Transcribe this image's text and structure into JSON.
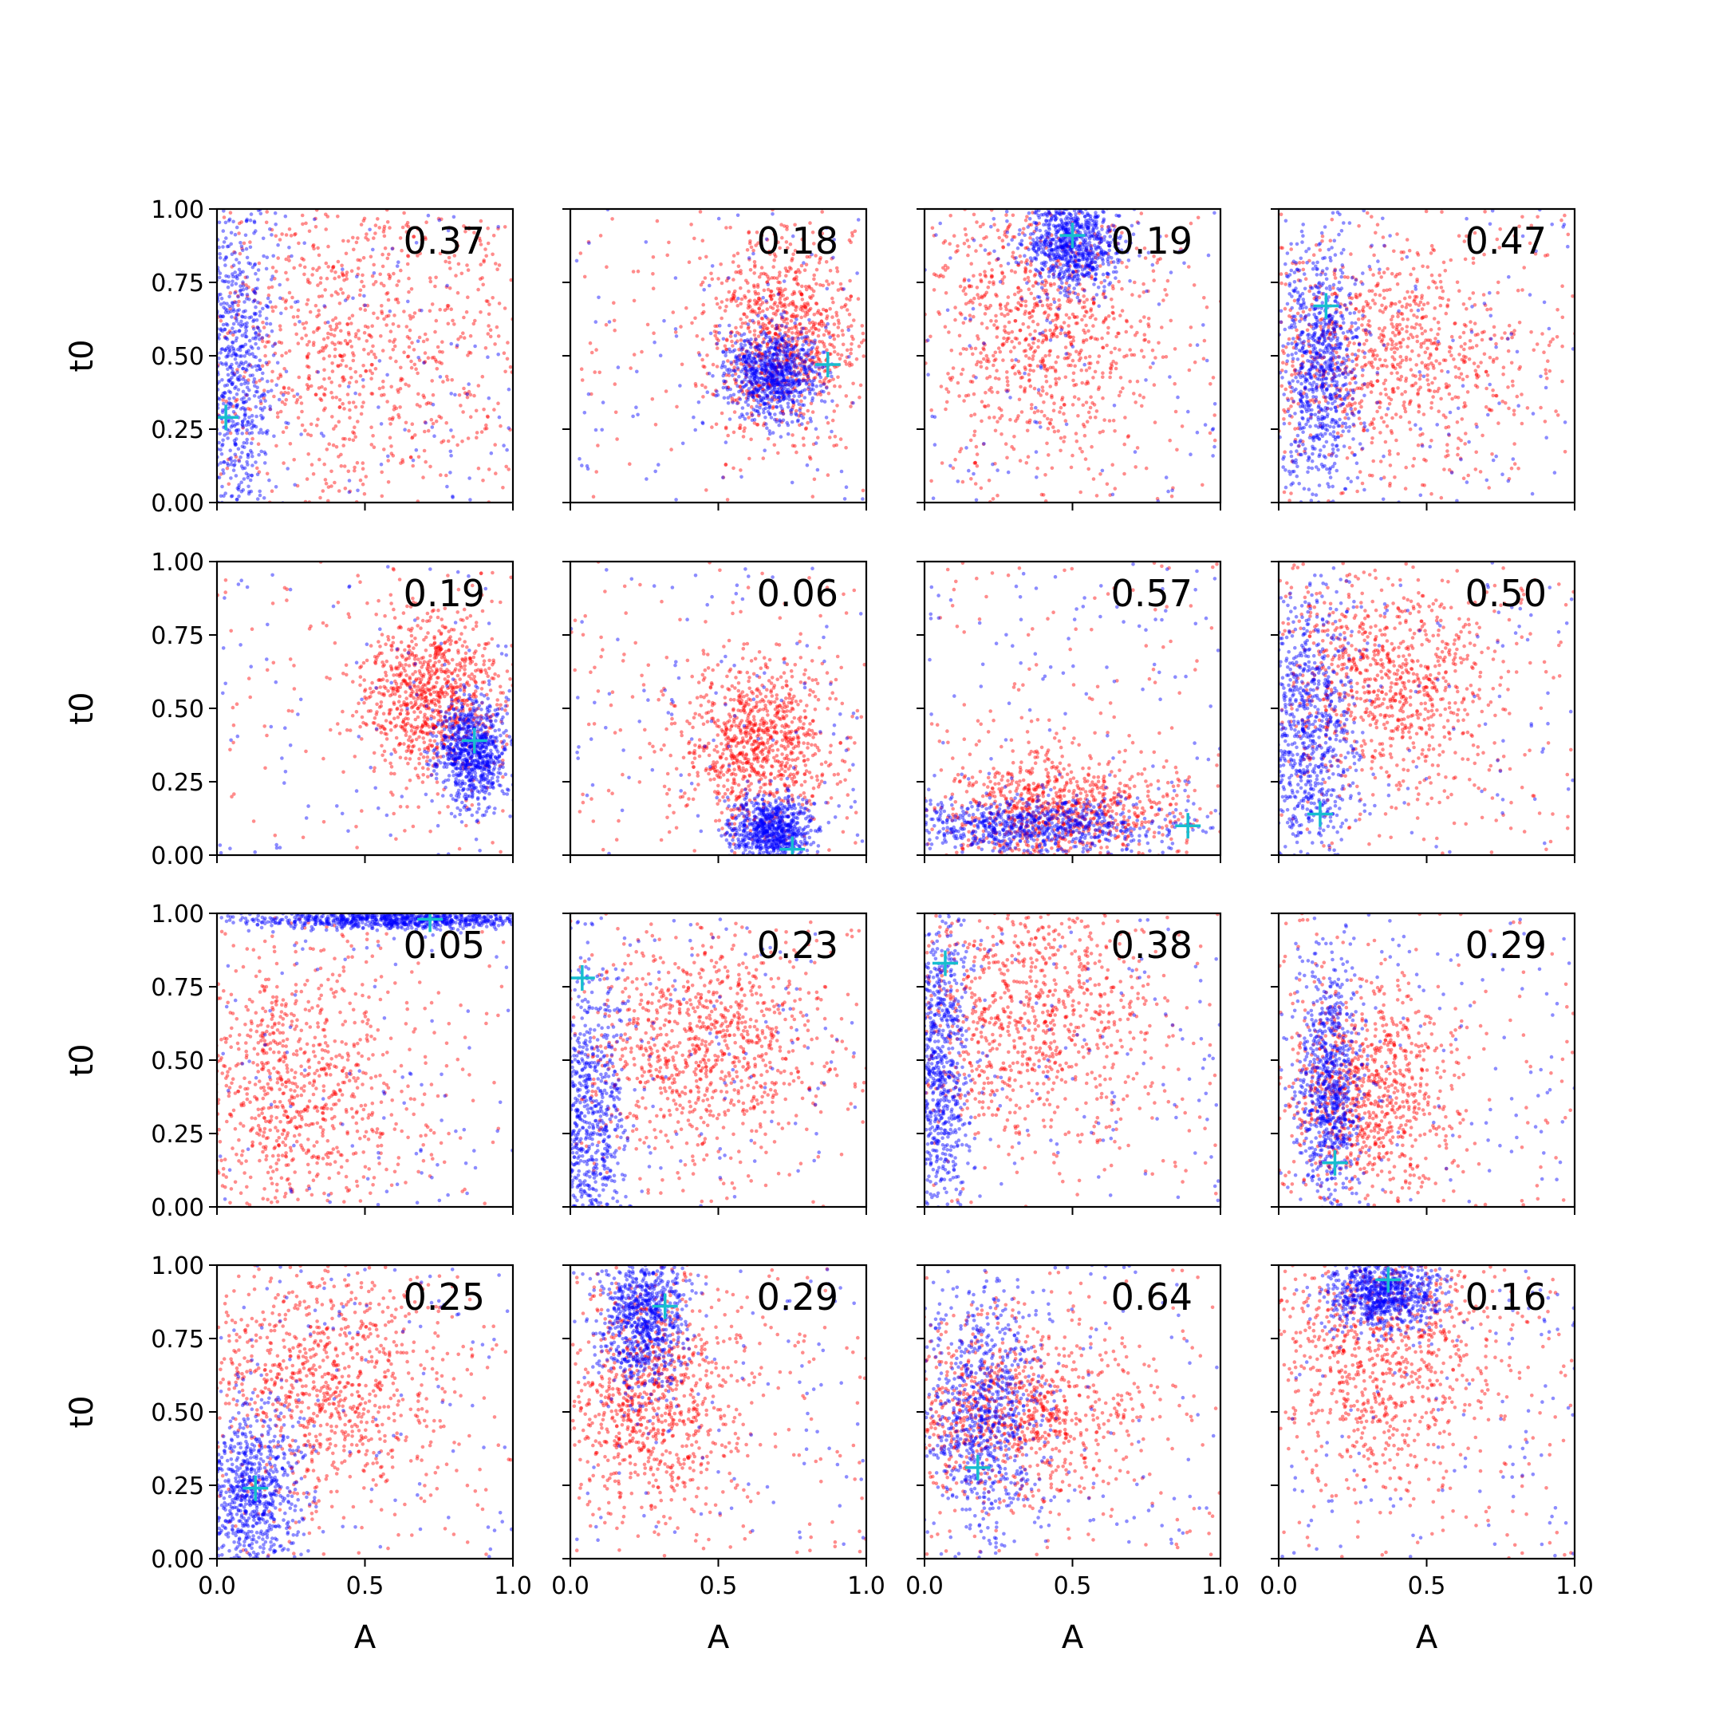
{
  "chart_data": {
    "type": "scatter",
    "layout": {
      "rows": 4,
      "cols": 4
    },
    "xlabel": "A",
    "ylabel": "t0",
    "xlim": [
      0.0,
      1.0
    ],
    "ylim": [
      0.0,
      1.0
    ],
    "xticks": [
      "0.0",
      "0.5",
      "1.0"
    ],
    "yticks": [
      "0.00",
      "0.25",
      "0.50",
      "0.75",
      "1.00"
    ],
    "grid": false,
    "colors": {
      "red": "#ff0000",
      "blue": "#0000ff",
      "marker": "#17becf"
    },
    "panels": [
      {
        "annotation": "0.37",
        "truth": [
          0.03,
          0.29
        ],
        "red": {
          "cx": 0.5,
          "cy": 0.55,
          "sx": 0.3,
          "sy": 0.3
        },
        "blue": {
          "cx": 0.06,
          "cy": 0.45,
          "sx": 0.07,
          "sy": 0.3
        }
      },
      {
        "annotation": "0.18",
        "truth": [
          0.87,
          0.47
        ],
        "red": {
          "cx": 0.72,
          "cy": 0.55,
          "sx": 0.12,
          "sy": 0.16
        },
        "blue": {
          "cx": 0.68,
          "cy": 0.44,
          "sx": 0.08,
          "sy": 0.08
        }
      },
      {
        "annotation": "0.19",
        "truth": [
          0.5,
          0.91
        ],
        "red": {
          "cx": 0.4,
          "cy": 0.6,
          "sx": 0.2,
          "sy": 0.25
        },
        "blue": {
          "cx": 0.5,
          "cy": 0.88,
          "sx": 0.08,
          "sy": 0.08
        }
      },
      {
        "annotation": "0.47",
        "truth": [
          0.16,
          0.67
        ],
        "red": {
          "cx": 0.35,
          "cy": 0.5,
          "sx": 0.25,
          "sy": 0.2
        },
        "blue": {
          "cx": 0.14,
          "cy": 0.45,
          "sx": 0.07,
          "sy": 0.22
        }
      },
      {
        "annotation": "0.19",
        "truth": [
          0.87,
          0.39
        ],
        "red": {
          "cx": 0.72,
          "cy": 0.55,
          "sx": 0.12,
          "sy": 0.14
        },
        "blue": {
          "cx": 0.86,
          "cy": 0.35,
          "sx": 0.06,
          "sy": 0.09
        }
      },
      {
        "annotation": "0.06",
        "truth": [
          0.75,
          0.02
        ],
        "red": {
          "cx": 0.63,
          "cy": 0.38,
          "sx": 0.13,
          "sy": 0.14
        },
        "blue": {
          "cx": 0.68,
          "cy": 0.08,
          "sx": 0.07,
          "sy": 0.06
        }
      },
      {
        "annotation": "0.57",
        "truth": [
          0.89,
          0.1
        ],
        "red": {
          "cx": 0.45,
          "cy": 0.15,
          "sx": 0.2,
          "sy": 0.1
        },
        "blue": {
          "cx": 0.35,
          "cy": 0.1,
          "sx": 0.25,
          "sy": 0.05
        }
      },
      {
        "annotation": "0.50",
        "truth": [
          0.14,
          0.14
        ],
        "red": {
          "cx": 0.35,
          "cy": 0.6,
          "sx": 0.2,
          "sy": 0.18
        },
        "blue": {
          "cx": 0.1,
          "cy": 0.4,
          "sx": 0.08,
          "sy": 0.25
        }
      },
      {
        "annotation": "0.05",
        "truth": [
          0.72,
          0.98
        ],
        "red": {
          "cx": 0.25,
          "cy": 0.4,
          "sx": 0.18,
          "sy": 0.25
        },
        "blue": {
          "cx": 0.6,
          "cy": 0.98,
          "sx": 0.25,
          "sy": 0.015
        }
      },
      {
        "annotation": "0.23",
        "truth": [
          0.04,
          0.78
        ],
        "red": {
          "cx": 0.45,
          "cy": 0.55,
          "sx": 0.2,
          "sy": 0.18
        },
        "blue": {
          "cx": 0.06,
          "cy": 0.3,
          "sx": 0.07,
          "sy": 0.25
        }
      },
      {
        "annotation": "0.38",
        "truth": [
          0.07,
          0.83
        ],
        "red": {
          "cx": 0.35,
          "cy": 0.65,
          "sx": 0.22,
          "sy": 0.22
        },
        "blue": {
          "cx": 0.05,
          "cy": 0.45,
          "sx": 0.05,
          "sy": 0.28
        }
      },
      {
        "annotation": "0.29",
        "truth": [
          0.19,
          0.15
        ],
        "red": {
          "cx": 0.3,
          "cy": 0.38,
          "sx": 0.15,
          "sy": 0.18
        },
        "blue": {
          "cx": 0.17,
          "cy": 0.4,
          "sx": 0.05,
          "sy": 0.22
        }
      },
      {
        "annotation": "0.25",
        "truth": [
          0.13,
          0.24
        ],
        "red": {
          "cx": 0.35,
          "cy": 0.6,
          "sx": 0.2,
          "sy": 0.2
        },
        "blue": {
          "cx": 0.12,
          "cy": 0.22,
          "sx": 0.08,
          "sy": 0.15
        }
      },
      {
        "annotation": "0.29",
        "truth": [
          0.32,
          0.86
        ],
        "red": {
          "cx": 0.28,
          "cy": 0.55,
          "sx": 0.15,
          "sy": 0.2
        },
        "blue": {
          "cx": 0.25,
          "cy": 0.82,
          "sx": 0.07,
          "sy": 0.12
        }
      },
      {
        "annotation": "0.64",
        "truth": [
          0.18,
          0.31
        ],
        "red": {
          "cx": 0.3,
          "cy": 0.5,
          "sx": 0.2,
          "sy": 0.15
        },
        "blue": {
          "cx": 0.2,
          "cy": 0.5,
          "sx": 0.1,
          "sy": 0.2
        }
      },
      {
        "annotation": "0.16",
        "truth": [
          0.37,
          0.95
        ],
        "red": {
          "cx": 0.35,
          "cy": 0.7,
          "sx": 0.2,
          "sy": 0.22
        },
        "blue": {
          "cx": 0.35,
          "cy": 0.9,
          "sx": 0.1,
          "sy": 0.06
        }
      }
    ]
  }
}
